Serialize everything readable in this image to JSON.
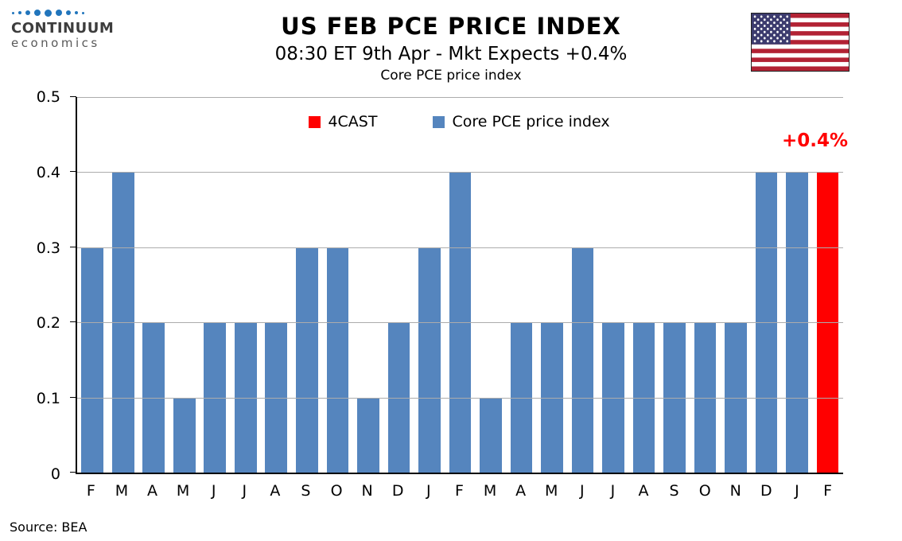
{
  "header": {
    "logo_line1": "CONTINUUM",
    "logo_line2": "economics",
    "title": "US FEB PCE PRICE INDEX",
    "subtitle": "08:30 ET 9th Apr - Mkt Expects +0.4%",
    "chart_title": "Core PCE price index"
  },
  "legend": [
    {
      "label": "4CAST",
      "color": "#FF0000"
    },
    {
      "label": "Core PCE price index",
      "color": "#5585BE"
    }
  ],
  "annotation": "+0.4%",
  "source": "Source: BEA",
  "flag_colors": {
    "red": "#B22234",
    "white": "#FFFFFF",
    "blue": "#3C3B6E"
  },
  "chart_data": {
    "type": "bar",
    "title": "Core PCE price index",
    "categories": [
      "F",
      "M",
      "A",
      "M",
      "J",
      "J",
      "A",
      "S",
      "O",
      "N",
      "D",
      "J",
      "F",
      "M",
      "A",
      "M",
      "J",
      "J",
      "A",
      "S",
      "O",
      "N",
      "D",
      "J",
      "F"
    ],
    "values": [
      0.3,
      0.4,
      0.2,
      0.1,
      0.2,
      0.2,
      0.2,
      0.3,
      0.3,
      0.1,
      0.2,
      0.3,
      0.4,
      0.1,
      0.2,
      0.2,
      0.3,
      0.2,
      0.2,
      0.2,
      0.2,
      0.2,
      0.4,
      0.4,
      0.4
    ],
    "forecast_index": 24,
    "bar_color": "#5585BE",
    "forecast_color": "#FF0000",
    "xlabel": "",
    "ylabel": "",
    "ylim": [
      0,
      0.5
    ],
    "yticks": [
      0,
      0.1,
      0.2,
      0.3,
      0.4,
      0.5
    ],
    "grid": true,
    "legend_position": "top-inside",
    "annotation": {
      "text": "+0.4%",
      "color": "#FF0000"
    }
  }
}
